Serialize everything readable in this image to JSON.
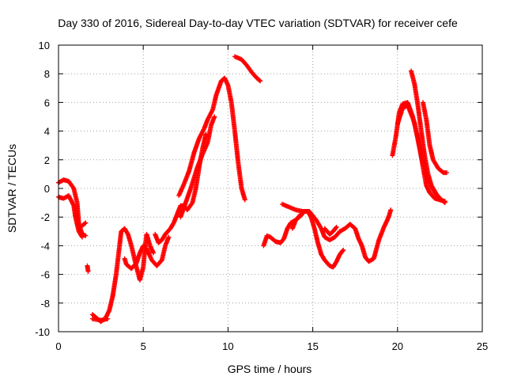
{
  "chart_data": {
    "type": "scatter",
    "title": "Day 330 of 2016, Sidereal Day-to-day VTEC variation (SDTVAR) for receiver cefe",
    "xlabel": "GPS time / hours",
    "ylabel": "SDTVAR / TECUs",
    "xlim": [
      0,
      25
    ],
    "ylim": [
      -10,
      10
    ],
    "x_ticks": [
      0,
      5,
      10,
      15,
      20,
      25
    ],
    "y_ticks": [
      -10,
      -8,
      -6,
      -4,
      -2,
      0,
      2,
      4,
      6,
      8,
      10
    ],
    "x_tick_labels": [
      "0",
      "5",
      "10",
      "15",
      "20",
      "25"
    ],
    "y_tick_labels": [
      "-10",
      "-8",
      "-6",
      "-4",
      "-2",
      "0",
      "2",
      "4",
      "6",
      "8",
      "10"
    ],
    "grid": true,
    "marker": "+",
    "series": [
      {
        "name": "SDTVAR",
        "color": "#ff0000",
        "tracks": [
          [
            [
              0.0,
              0.4
            ],
            [
              0.3,
              0.6
            ],
            [
              0.6,
              0.5
            ],
            [
              0.9,
              0.0
            ],
            [
              1.1,
              -1.0
            ],
            [
              1.2,
              -2.5
            ],
            [
              1.4,
              -3.2
            ],
            [
              1.6,
              -3.3
            ]
          ],
          [
            [
              0.0,
              -0.6
            ],
            [
              0.3,
              -0.7
            ],
            [
              0.6,
              -0.5
            ],
            [
              0.9,
              -1.2
            ],
            [
              1.0,
              -2.0
            ],
            [
              1.2,
              -3.0
            ],
            [
              1.4,
              -3.4
            ]
          ],
          [
            [
              1.4,
              -2.6
            ],
            [
              1.6,
              -2.4
            ]
          ],
          [
            [
              1.7,
              -5.4
            ],
            [
              1.75,
              -5.8
            ]
          ],
          [
            [
              2.0,
              -8.8
            ],
            [
              2.2,
              -9.0
            ],
            [
              2.5,
              -9.3
            ],
            [
              2.8,
              -9.0
            ],
            [
              3.0,
              -8.5
            ],
            [
              3.2,
              -7.5
            ],
            [
              3.4,
              -6.0
            ],
            [
              3.6,
              -4.0
            ],
            [
              3.7,
              -3.0
            ],
            [
              3.9,
              -2.8
            ],
            [
              4.1,
              -3.2
            ],
            [
              4.3,
              -4.0
            ],
            [
              4.6,
              -5.5
            ],
            [
              4.8,
              -6.4
            ],
            [
              5.0,
              -5.5
            ],
            [
              5.1,
              -4.2
            ],
            [
              5.2,
              -3.2
            ],
            [
              5.4,
              -4.0
            ],
            [
              5.6,
              -4.5
            ]
          ],
          [
            [
              2.0,
              -9.1
            ],
            [
              2.5,
              -9.2
            ],
            [
              2.9,
              -9.1
            ]
          ],
          [
            [
              3.9,
              -4.9
            ],
            [
              4.0,
              -5.3
            ],
            [
              4.3,
              -5.6
            ],
            [
              4.6,
              -5.2
            ],
            [
              4.8,
              -4.5
            ],
            [
              5.0,
              -4.0
            ],
            [
              5.2,
              -4.2
            ],
            [
              5.5,
              -5.0
            ],
            [
              5.8,
              -5.4
            ],
            [
              6.1,
              -5.0
            ],
            [
              6.3,
              -4.0
            ],
            [
              6.5,
              -3.4
            ]
          ],
          [
            [
              5.7,
              -3.2
            ],
            [
              5.9,
              -3.8
            ],
            [
              6.1,
              -3.6
            ],
            [
              6.3,
              -3.2
            ],
            [
              6.6,
              -2.8
            ],
            [
              6.8,
              -2.4
            ],
            [
              7.0,
              -1.8
            ],
            [
              7.2,
              -1.2
            ],
            [
              7.4,
              -1.2
            ],
            [
              7.6,
              -1.5
            ],
            [
              7.9,
              -1.0
            ],
            [
              8.1,
              0.0
            ],
            [
              8.3,
              1.5
            ],
            [
              8.5,
              2.8
            ],
            [
              8.7,
              3.8
            ]
          ],
          [
            [
              7.1,
              -0.5
            ],
            [
              7.4,
              0.3
            ],
            [
              7.7,
              1.2
            ],
            [
              8.0,
              2.5
            ],
            [
              8.3,
              3.5
            ],
            [
              8.6,
              4.2
            ],
            [
              8.8,
              4.8
            ],
            [
              9.1,
              5.5
            ],
            [
              9.3,
              6.5
            ],
            [
              9.6,
              7.5
            ],
            [
              9.8,
              7.7
            ],
            [
              10.0,
              7.2
            ],
            [
              10.2,
              6.0
            ],
            [
              10.4,
              4.0
            ],
            [
              10.6,
              1.8
            ],
            [
              10.8,
              0.0
            ],
            [
              11.0,
              -0.8
            ]
          ],
          [
            [
              7.2,
              -2.0
            ],
            [
              7.5,
              -1.0
            ],
            [
              7.8,
              0.0
            ],
            [
              8.2,
              1.5
            ],
            [
              8.5,
              2.4
            ],
            [
              8.8,
              3.2
            ],
            [
              9.0,
              4.4
            ],
            [
              9.2,
              5.0
            ]
          ],
          [
            [
              10.4,
              9.2
            ],
            [
              10.8,
              9.0
            ],
            [
              11.1,
              8.6
            ],
            [
              11.4,
              8.1
            ],
            [
              11.7,
              7.7
            ],
            [
              11.9,
              7.5
            ]
          ],
          [
            [
              12.1,
              -4.0
            ],
            [
              12.3,
              -3.3
            ],
            [
              12.5,
              -3.4
            ],
            [
              12.8,
              -3.7
            ],
            [
              13.1,
              -3.8
            ],
            [
              13.3,
              -3.5
            ],
            [
              13.5,
              -2.8
            ],
            [
              13.7,
              -2.4
            ],
            [
              14.0,
              -2.2
            ],
            [
              14.3,
              -1.9
            ],
            [
              14.5,
              -1.6
            ],
            [
              14.7,
              -1.6
            ],
            [
              14.9,
              -2.0
            ],
            [
              15.1,
              -2.8
            ],
            [
              15.3,
              -3.8
            ],
            [
              15.5,
              -4.6
            ],
            [
              15.7,
              -5.0
            ],
            [
              16.0,
              -5.4
            ],
            [
              16.2,
              -5.5
            ],
            [
              16.4,
              -5.1
            ],
            [
              16.6,
              -4.6
            ],
            [
              16.8,
              -4.3
            ]
          ],
          [
            [
              13.2,
              -1.1
            ],
            [
              13.6,
              -1.3
            ],
            [
              14.0,
              -1.5
            ],
            [
              14.4,
              -1.6
            ],
            [
              14.8,
              -1.6
            ],
            [
              15.2,
              -2.2
            ],
            [
              15.5,
              -2.8
            ],
            [
              15.7,
              -3.4
            ],
            [
              16.0,
              -3.6
            ],
            [
              16.3,
              -3.4
            ],
            [
              16.6,
              -3.0
            ],
            [
              16.9,
              -2.8
            ],
            [
              17.2,
              -2.5
            ],
            [
              17.5,
              -2.8
            ],
            [
              17.7,
              -3.5
            ],
            [
              17.9,
              -4.0
            ],
            [
              18.1,
              -4.8
            ],
            [
              18.3,
              -5.1
            ],
            [
              18.6,
              -4.9
            ],
            [
              18.9,
              -3.6
            ],
            [
              19.2,
              -2.7
            ],
            [
              19.4,
              -2.2
            ],
            [
              19.5,
              -1.9
            ],
            [
              19.6,
              -1.5
            ]
          ],
          [
            [
              13.8,
              -2.8
            ],
            [
              14.0,
              -2.2
            ],
            [
              14.3,
              -1.8
            ]
          ],
          [
            [
              15.7,
              -2.8
            ],
            [
              16.0,
              -3.2
            ],
            [
              16.2,
              -3.0
            ],
            [
              16.4,
              -2.7
            ]
          ],
          [
            [
              19.7,
              2.3
            ],
            [
              19.9,
              3.6
            ],
            [
              20.1,
              5.3
            ],
            [
              20.3,
              5.9
            ],
            [
              20.6,
              6.0
            ],
            [
              20.9,
              5.0
            ],
            [
              21.1,
              4.0
            ],
            [
              21.3,
              3.0
            ],
            [
              21.5,
              1.5
            ],
            [
              21.7,
              0.2
            ],
            [
              21.9,
              -0.3
            ],
            [
              22.2,
              -0.7
            ],
            [
              22.5,
              -0.8
            ],
            [
              22.8,
              -0.9
            ]
          ],
          [
            [
              20.0,
              4.5
            ],
            [
              20.3,
              5.6
            ],
            [
              20.6,
              5.8
            ],
            [
              21.0,
              4.6
            ],
            [
              21.4,
              2.2
            ],
            [
              21.8,
              0.6
            ],
            [
              22.2,
              -0.3
            ],
            [
              22.6,
              -0.8
            ]
          ],
          [
            [
              20.8,
              8.2
            ],
            [
              21.0,
              7.3
            ],
            [
              21.2,
              5.8
            ],
            [
              21.4,
              4.0
            ],
            [
              21.6,
              2.3
            ],
            [
              21.8,
              1.0
            ],
            [
              22.0,
              0.2
            ],
            [
              22.4,
              -0.6
            ],
            [
              22.8,
              -1.0
            ]
          ],
          [
            [
              21.5,
              6.0
            ],
            [
              21.7,
              4.8
            ],
            [
              21.9,
              3.0
            ],
            [
              22.1,
              2.0
            ],
            [
              22.4,
              1.4
            ],
            [
              22.7,
              1.1
            ],
            [
              22.9,
              1.1
            ]
          ]
        ]
      }
    ]
  }
}
